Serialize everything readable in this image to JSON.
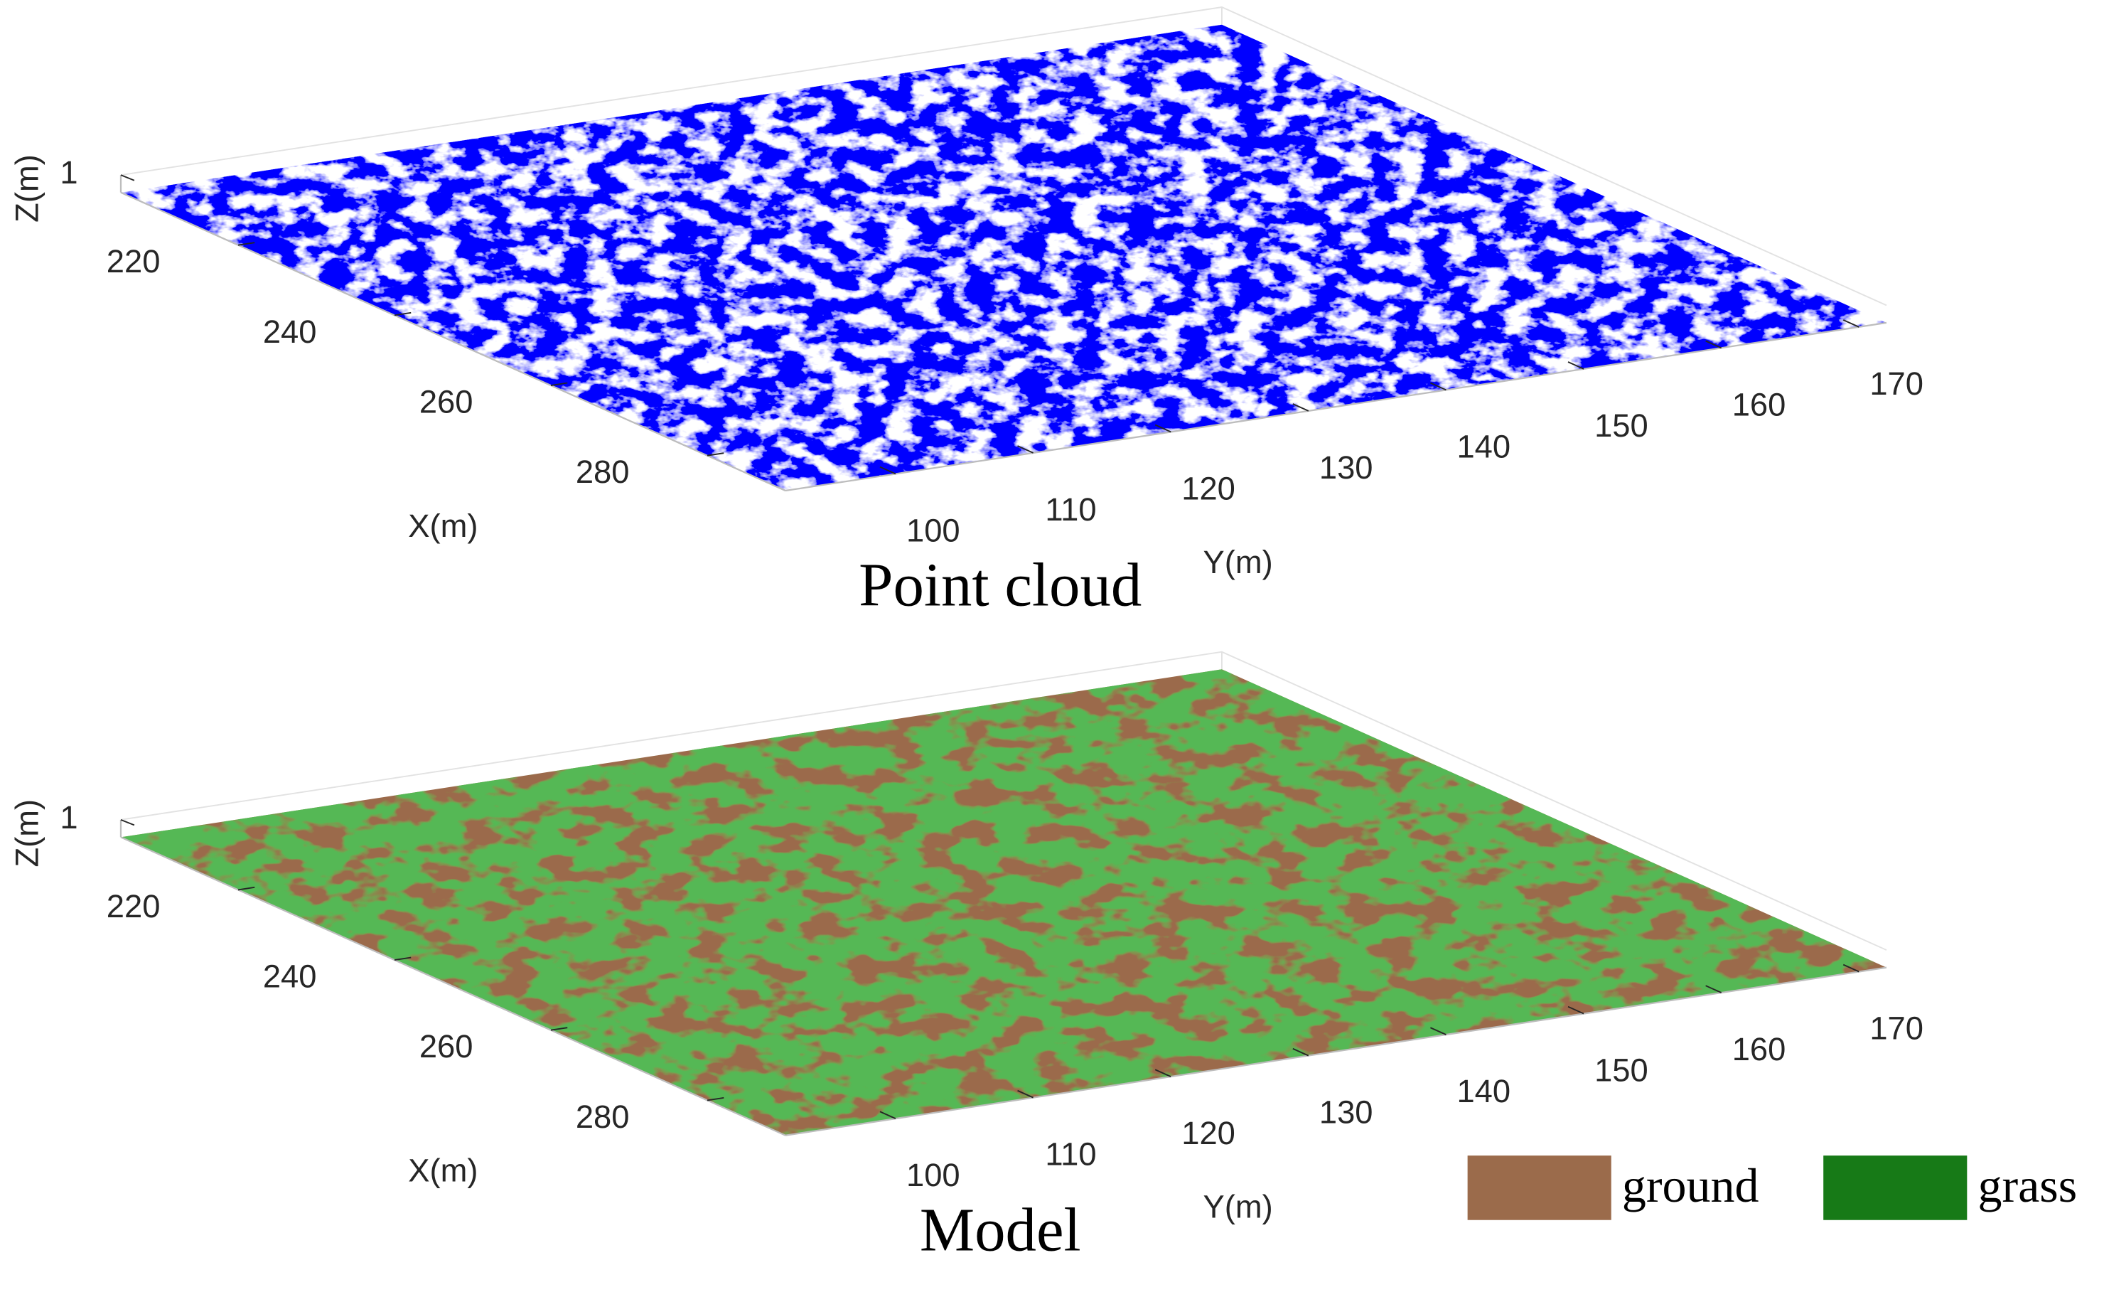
{
  "chart_data": [
    {
      "type": "scatter3d",
      "title": "Point cloud",
      "xlabel": "X(m)",
      "ylabel": "Y(m)",
      "zlabel": "Z(m)",
      "xlim": [
        205,
        290
      ],
      "ylim": [
        92,
        172
      ],
      "zlim": [
        0,
        1
      ],
      "xticks": [
        220,
        240,
        260,
        280
      ],
      "yticks": [
        100,
        110,
        120,
        130,
        140,
        150,
        160,
        170
      ],
      "zticks": [
        1
      ],
      "color": "#0000ff"
    },
    {
      "type": "voxel3d",
      "title": "Model",
      "xlabel": "X(m)",
      "ylabel": "Y(m)",
      "zlabel": "Z(m)",
      "xlim": [
        205,
        290
      ],
      "ylim": [
        92,
        172
      ],
      "zlim": [
        0,
        1
      ],
      "xticks": [
        220,
        240,
        260,
        280
      ],
      "yticks": [
        100,
        110,
        120,
        130,
        140,
        150,
        160,
        170
      ],
      "zticks": [
        1
      ],
      "series": [
        {
          "name": "ground",
          "color": "#9b6b4b"
        },
        {
          "name": "grass",
          "color": "#177a17"
        }
      ]
    }
  ]
}
